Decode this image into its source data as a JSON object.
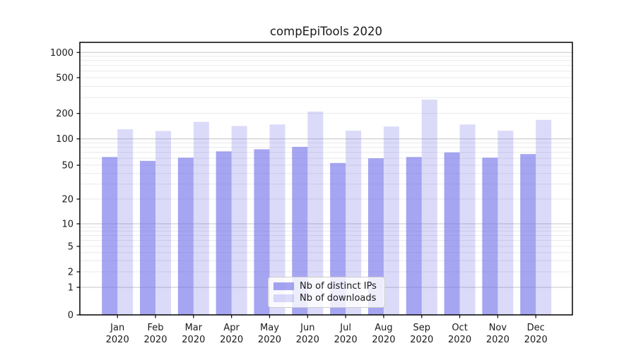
{
  "chart_data": {
    "type": "bar",
    "title": "compEpiTools 2020",
    "categories": [
      "Jan",
      "Feb",
      "Mar",
      "Apr",
      "May",
      "Jun",
      "Jul",
      "Aug",
      "Sep",
      "Oct",
      "Nov",
      "Dec"
    ],
    "category_year": "2020",
    "series": [
      {
        "name": "Nb of distinct IPs",
        "color": "#6e6ee8",
        "opacity": 0.62,
        "values": [
          62,
          56,
          61,
          72,
          76,
          81,
          53,
          60,
          62,
          70,
          61,
          67
        ]
      },
      {
        "name": "Nb of downloads",
        "color": "#6e6ee8",
        "opacity": 0.25,
        "values": [
          130,
          124,
          159,
          142,
          148,
          210,
          125,
          140,
          285,
          148,
          125,
          168
        ]
      }
    ],
    "yscale": "symlog (log above 1, linear 0-1)",
    "yticks": [
      0,
      1,
      2,
      5,
      10,
      20,
      50,
      100,
      200,
      500,
      1000
    ],
    "ylim": [
      0,
      1300
    ],
    "xlabel": "",
    "ylabel": "",
    "grid": "horizontal major + log minor gridlines",
    "legend_position": "inside plot, lower center",
    "colors": {
      "axis": "#000000",
      "major_grid": "#c4c4c4",
      "minor_grid": "#e9e9e9",
      "text": "#1a1a1a",
      "dark_bar_rendered": "#a3a3f0",
      "light_bar_rendered": "#dbdbf9"
    }
  }
}
